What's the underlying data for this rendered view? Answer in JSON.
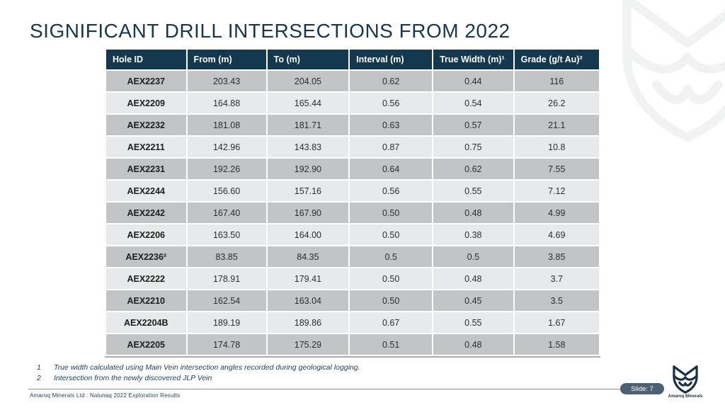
{
  "slide": {
    "title": "SIGNIFICANT DRILL INTERSECTIONS FROM 2022",
    "slide_label": "Slide: 7",
    "footer": "Amaroq Minerals Ltd : Nalunaq 2022 Exploration Results",
    "logo_text": "Amaroq Minerals"
  },
  "table": {
    "headers": [
      "Hole ID",
      "From (m)",
      "To (m)",
      "Interval (m)",
      "True Width (m)¹",
      "Grade (g/t Au)²"
    ],
    "rows": [
      [
        "AEX2237",
        "203.43",
        "204.05",
        "0.62",
        "0.44",
        "116"
      ],
      [
        "AEX2209",
        "164.88",
        "165.44",
        "0.56",
        "0.54",
        "26.2"
      ],
      [
        "AEX2232",
        "181.08",
        "181.71",
        "0.63",
        "0.57",
        "21.1"
      ],
      [
        "AEX2211",
        "142.96",
        "143.83",
        "0.87",
        "0.75",
        "10.8"
      ],
      [
        "AEX2231",
        "192.26",
        "192.90",
        "0.64",
        "0.62",
        "7.55"
      ],
      [
        "AEX2244",
        "156.60",
        "157.16",
        "0.56",
        "0.55",
        "7.12"
      ],
      [
        "AEX2242",
        "167.40",
        "167.90",
        "0.50",
        "0.48",
        "4.99"
      ],
      [
        "AEX2206",
        "163.50",
        "164.00",
        "0.50",
        "0.38",
        "4.69"
      ],
      [
        "AEX2236²",
        "83.85",
        "84.35",
        "0.5",
        "0.5",
        "3.85"
      ],
      [
        "AEX2222",
        "178.91",
        "179.41",
        "0.50",
        "0.48",
        "3.7"
      ],
      [
        "AEX2210",
        "162.54",
        "163.04",
        "0.50",
        "0.45",
        "3.5"
      ],
      [
        "AEX2204B",
        "189.19",
        "189.86",
        "0.67",
        "0.55",
        "1.67"
      ],
      [
        "AEX2205",
        "174.78",
        "175.29",
        "0.51",
        "0.48",
        "1.58"
      ]
    ]
  },
  "footnotes": [
    {
      "num": "1",
      "text": "True width calculated using Main Vein intersection angles recorded during geological logging."
    },
    {
      "num": "2",
      "text": "Intersection from the newly discovered JLP Vein"
    }
  ],
  "colors": {
    "header_bg": "#14384e",
    "row_dark": "#c2c4c6",
    "row_light": "#e8e9ea",
    "title": "#17374e",
    "pill": "#4d6173",
    "logo_navy": "#1c3044",
    "watermark": "#f1f2f2"
  },
  "icons": {
    "watermark": "fox-watermark-icon",
    "logo": "amaroq-fox-logo-icon"
  }
}
